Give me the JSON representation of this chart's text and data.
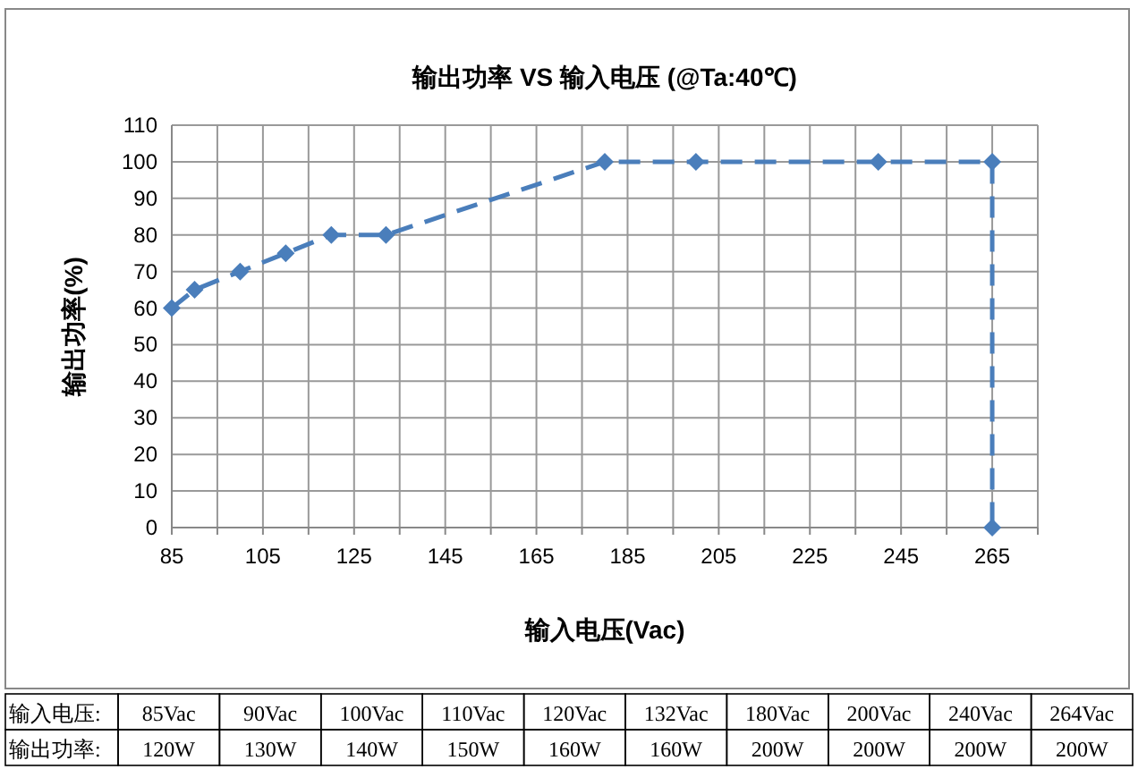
{
  "chart_data": {
    "type": "line",
    "title": "输出功率 VS 输入电压 (@Ta:40℃)",
    "xlabel": "输入电压(Vac)",
    "ylabel": "输出功率(%)",
    "x": [
      85,
      90,
      100,
      110,
      120,
      132,
      180,
      200,
      240,
      265,
      265
    ],
    "series": [
      {
        "color": "#4a7ebb",
        "values": [
          60,
          65,
          70,
          75,
          80,
          80,
          100,
          100,
          100,
          100,
          0
        ]
      }
    ],
    "xlim": [
      85,
      275
    ],
    "xticks": [
      85,
      {
        "value": 95,
        "label": null
      },
      105,
      {
        "value": 115,
        "label": null
      },
      125,
      {
        "value": 135,
        "label": null
      },
      145,
      {
        "value": 155,
        "label": null
      },
      165,
      {
        "value": 175,
        "label": null
      },
      185,
      {
        "value": 195,
        "label": null
      },
      205,
      {
        "value": 215,
        "label": null
      },
      225,
      {
        "value": 235,
        "label": null
      },
      245,
      {
        "value": 255,
        "label": null
      },
      265,
      {
        "value": 275,
        "label": null
      }
    ],
    "ylim": [
      0,
      110
    ],
    "yticks": [
      0,
      10,
      20,
      30,
      40,
      50,
      60,
      70,
      80,
      90,
      100,
      110
    ],
    "grid": true,
    "marker": "diamond",
    "line_style": "dashed",
    "annotations": [
      "输入电压:",
      "85Vac",
      "90Vac",
      "100Vac",
      "110Vac",
      "120Vac",
      "132Vac",
      "180Vac",
      "200Vac",
      "240Vac",
      "264Vac",
      "输出功率:",
      "120W",
      "130W",
      "140W",
      "150W",
      "160W",
      "160W",
      "200W",
      "200W",
      "200W",
      "200W"
    ]
  }
}
